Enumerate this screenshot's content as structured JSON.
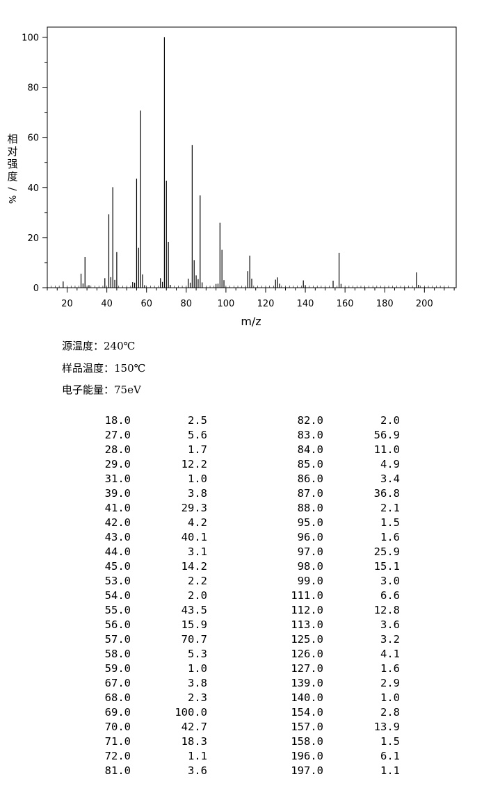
{
  "chart_data": {
    "type": "bar",
    "title": "",
    "xlabel": "m/z",
    "ylabel": "相对强度/%",
    "xlim": [
      10,
      216
    ],
    "ylim": [
      0,
      104
    ],
    "xticks": [
      20,
      40,
      60,
      80,
      100,
      120,
      140,
      160,
      180,
      200
    ],
    "yticks": [
      0,
      20,
      40,
      60,
      80,
      100
    ],
    "grid": false,
    "peaks": [
      {
        "mz": 18.0,
        "intensity": 2.5
      },
      {
        "mz": 27.0,
        "intensity": 5.6
      },
      {
        "mz": 28.0,
        "intensity": 1.7
      },
      {
        "mz": 29.0,
        "intensity": 12.2
      },
      {
        "mz": 31.0,
        "intensity": 1.0
      },
      {
        "mz": 39.0,
        "intensity": 3.8
      },
      {
        "mz": 41.0,
        "intensity": 29.3
      },
      {
        "mz": 42.0,
        "intensity": 4.2
      },
      {
        "mz": 43.0,
        "intensity": 40.1
      },
      {
        "mz": 44.0,
        "intensity": 3.1
      },
      {
        "mz": 45.0,
        "intensity": 14.2
      },
      {
        "mz": 53.0,
        "intensity": 2.2
      },
      {
        "mz": 54.0,
        "intensity": 2.0
      },
      {
        "mz": 55.0,
        "intensity": 43.5
      },
      {
        "mz": 56.0,
        "intensity": 15.9
      },
      {
        "mz": 57.0,
        "intensity": 70.7
      },
      {
        "mz": 58.0,
        "intensity": 5.3
      },
      {
        "mz": 59.0,
        "intensity": 1.0
      },
      {
        "mz": 67.0,
        "intensity": 3.8
      },
      {
        "mz": 68.0,
        "intensity": 2.3
      },
      {
        "mz": 69.0,
        "intensity": 100.0
      },
      {
        "mz": 70.0,
        "intensity": 42.7
      },
      {
        "mz": 71.0,
        "intensity": 18.3
      },
      {
        "mz": 72.0,
        "intensity": 1.1
      },
      {
        "mz": 81.0,
        "intensity": 3.6
      },
      {
        "mz": 82.0,
        "intensity": 2.0
      },
      {
        "mz": 83.0,
        "intensity": 56.9
      },
      {
        "mz": 84.0,
        "intensity": 11.0
      },
      {
        "mz": 85.0,
        "intensity": 4.9
      },
      {
        "mz": 86.0,
        "intensity": 3.4
      },
      {
        "mz": 87.0,
        "intensity": 36.8
      },
      {
        "mz": 88.0,
        "intensity": 2.1
      },
      {
        "mz": 95.0,
        "intensity": 1.5
      },
      {
        "mz": 96.0,
        "intensity": 1.6
      },
      {
        "mz": 97.0,
        "intensity": 25.9
      },
      {
        "mz": 98.0,
        "intensity": 15.1
      },
      {
        "mz": 99.0,
        "intensity": 3.0
      },
      {
        "mz": 111.0,
        "intensity": 6.6
      },
      {
        "mz": 112.0,
        "intensity": 12.8
      },
      {
        "mz": 113.0,
        "intensity": 3.6
      },
      {
        "mz": 125.0,
        "intensity": 3.2
      },
      {
        "mz": 126.0,
        "intensity": 4.1
      },
      {
        "mz": 127.0,
        "intensity": 1.6
      },
      {
        "mz": 139.0,
        "intensity": 2.9
      },
      {
        "mz": 140.0,
        "intensity": 1.0
      },
      {
        "mz": 154.0,
        "intensity": 2.8
      },
      {
        "mz": 157.0,
        "intensity": 13.9
      },
      {
        "mz": 158.0,
        "intensity": 1.5
      },
      {
        "mz": 196.0,
        "intensity": 6.1
      },
      {
        "mz": 197.0,
        "intensity": 1.1
      }
    ]
  },
  "info": {
    "source_temp": "源温度：240℃",
    "sample_temp": "样品温度：150℃",
    "electron_energy": "电子能量：75eV"
  },
  "table": {
    "rows": [
      [
        "18.0",
        "2.5",
        "82.0",
        "2.0"
      ],
      [
        "27.0",
        "5.6",
        "83.0",
        "56.9"
      ],
      [
        "28.0",
        "1.7",
        "84.0",
        "11.0"
      ],
      [
        "29.0",
        "12.2",
        "85.0",
        "4.9"
      ],
      [
        "31.0",
        "1.0",
        "86.0",
        "3.4"
      ],
      [
        "39.0",
        "3.8",
        "87.0",
        "36.8"
      ],
      [
        "41.0",
        "29.3",
        "88.0",
        "2.1"
      ],
      [
        "42.0",
        "4.2",
        "95.0",
        "1.5"
      ],
      [
        "43.0",
        "40.1",
        "96.0",
        "1.6"
      ],
      [
        "44.0",
        "3.1",
        "97.0",
        "25.9"
      ],
      [
        "45.0",
        "14.2",
        "98.0",
        "15.1"
      ],
      [
        "53.0",
        "2.2",
        "99.0",
        "3.0"
      ],
      [
        "54.0",
        "2.0",
        "111.0",
        "6.6"
      ],
      [
        "55.0",
        "43.5",
        "112.0",
        "12.8"
      ],
      [
        "56.0",
        "15.9",
        "113.0",
        "3.6"
      ],
      [
        "57.0",
        "70.7",
        "125.0",
        "3.2"
      ],
      [
        "58.0",
        "5.3",
        "126.0",
        "4.1"
      ],
      [
        "59.0",
        "1.0",
        "127.0",
        "1.6"
      ],
      [
        "67.0",
        "3.8",
        "139.0",
        "2.9"
      ],
      [
        "68.0",
        "2.3",
        "140.0",
        "1.0"
      ],
      [
        "69.0",
        "100.0",
        "154.0",
        "2.8"
      ],
      [
        "70.0",
        "42.7",
        "157.0",
        "13.9"
      ],
      [
        "71.0",
        "18.3",
        "158.0",
        "1.5"
      ],
      [
        "72.0",
        "1.1",
        "196.0",
        "6.1"
      ],
      [
        "81.0",
        "3.6",
        "197.0",
        "1.1"
      ]
    ]
  }
}
